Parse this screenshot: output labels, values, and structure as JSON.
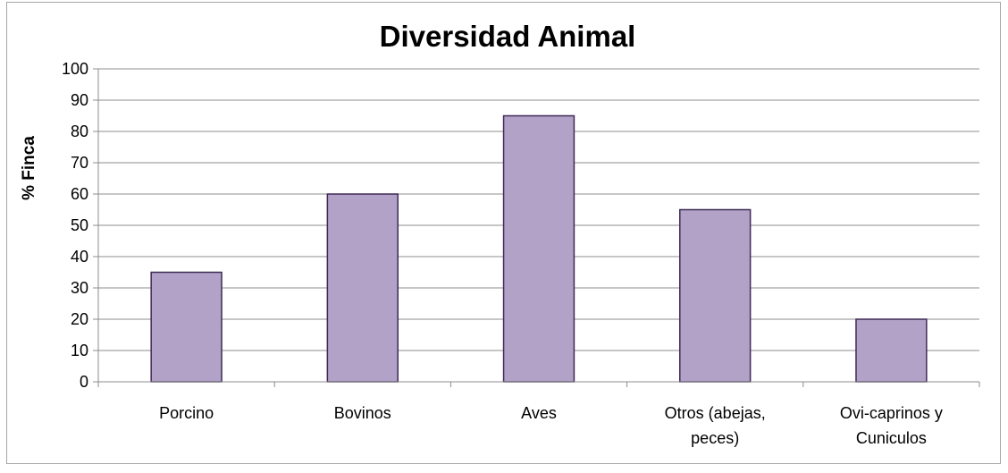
{
  "chart_data": {
    "type": "bar",
    "title": "Diversidad Animal",
    "xlabel": "",
    "ylabel": "% Finca",
    "categories": [
      "Porcino",
      "Bovinos",
      "Aves",
      "Otros (abejas, peces)",
      "Ovi-caprinos y Cuniculos"
    ],
    "category_lines": [
      [
        "Porcino"
      ],
      [
        "Bovinos"
      ],
      [
        "Aves"
      ],
      [
        "Otros (abejas,",
        "peces)"
      ],
      [
        "Ovi-caprinos y",
        "Cuniculos"
      ]
    ],
    "series": [
      {
        "values": [
          35,
          60,
          85,
          55,
          20
        ]
      }
    ],
    "ylim": [
      0,
      100
    ],
    "yticks": [
      0,
      10,
      20,
      30,
      40,
      50,
      60,
      70,
      80,
      90,
      100
    ],
    "grid": true,
    "legend": "none",
    "colors": {
      "bar_fill": "#b2a2c7",
      "bar_stroke": "#3f2a56",
      "grid": "#8c8c8c",
      "axis": "#8c8c8c",
      "frame": "#a6a6a6"
    }
  }
}
